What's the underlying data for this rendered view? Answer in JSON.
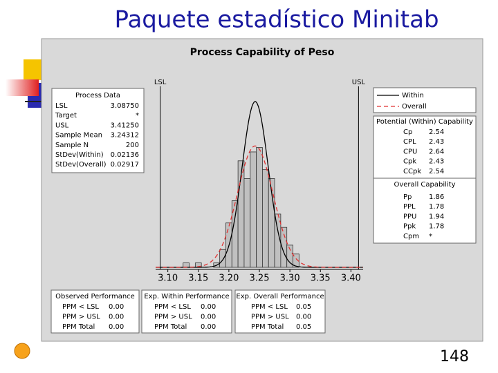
{
  "slide": {
    "title": "Paquete estadístico Minitab",
    "page_number": "148"
  },
  "chart_data": {
    "type": "histogram",
    "title": "Process Capability of Peso",
    "bins": [
      3.125,
      3.135,
      3.145,
      3.155,
      3.165,
      3.175,
      3.185,
      3.195,
      3.205,
      3.215,
      3.225,
      3.235,
      3.245,
      3.255,
      3.265,
      3.275,
      3.285,
      3.295,
      3.305,
      3.315
    ],
    "counts": [
      1,
      0,
      1,
      0,
      0,
      1,
      4,
      10,
      15,
      24,
      20,
      26,
      27,
      22,
      20,
      12,
      9,
      5,
      3
    ],
    "color": "#c0c0c0",
    "xlim": [
      3.08,
      3.42
    ],
    "xticks": [
      {
        "value": 3.1,
        "label": "3.10"
      },
      {
        "value": 3.15,
        "label": "3.15"
      },
      {
        "value": 3.2,
        "label": "3.20"
      },
      {
        "value": 3.25,
        "label": "3.25"
      },
      {
        "value": 3.3,
        "label": "3.30"
      },
      {
        "value": 3.35,
        "label": "3.35"
      },
      {
        "value": 3.4,
        "label": "3.40"
      }
    ],
    "ylim": [
      0,
      40
    ],
    "spec_labels": {
      "lsl": "LSL",
      "usl": "USL"
    },
    "series": [
      {
        "name": "Within",
        "color": "#000000",
        "dashed": false
      },
      {
        "name": "Overall",
        "color": "#e03030",
        "dashed": true
      }
    ],
    "process_data": {
      "title": "Process Data",
      "rows": [
        {
          "name": "LSL",
          "value": 3.0875,
          "label": "3.08750"
        },
        {
          "name": "Target",
          "label": "*"
        },
        {
          "name": "USL",
          "value": 3.4125,
          "label": "3.41250"
        },
        {
          "name": "Sample Mean",
          "value": 3.24312
        },
        {
          "name": "Sample N",
          "value": 200
        },
        {
          "name": "StDev(Within)",
          "value": 0.02136
        },
        {
          "name": "StDev(Overall)",
          "value": 0.02917
        }
      ]
    },
    "potential_capability": {
      "title": "Potential (Within) Capability",
      "rows": [
        {
          "name": "Cp",
          "value": 2.54
        },
        {
          "name": "CPL",
          "value": 2.43
        },
        {
          "name": "CPU",
          "value": 2.64
        },
        {
          "name": "Cpk",
          "value": 2.43
        },
        {
          "name": "CCpk",
          "value": 2.54
        }
      ]
    },
    "overall_capability": {
      "title": "Overall Capability",
      "rows": [
        {
          "name": "Pp",
          "value": 1.86
        },
        {
          "name": "PPL",
          "value": 1.78
        },
        {
          "name": "PPU",
          "value": 1.94
        },
        {
          "name": "Ppk",
          "value": 1.78
        },
        {
          "name": "Cpm",
          "label": "*"
        }
      ]
    },
    "observed_performance": {
      "title": "Observed Performance",
      "rows": [
        {
          "name": "PPM < LSL",
          "value": 0,
          "label": "0.00"
        },
        {
          "name": "PPM > USL",
          "value": 0,
          "label": "0.00"
        },
        {
          "name": "PPM Total",
          "value": 0,
          "label": "0.00"
        }
      ]
    },
    "exp_within_performance": {
      "title": "Exp. Within Performance",
      "rows": [
        {
          "name": "PPM < LSL",
          "value": 0,
          "label": "0.00"
        },
        {
          "name": "PPM > USL",
          "value": 0,
          "label": "0.00"
        },
        {
          "name": "PPM Total",
          "value": 0,
          "label": "0.00"
        }
      ]
    },
    "exp_overall_performance": {
      "title": "Exp. Overall Performance",
      "rows": [
        {
          "name": "PPM < LSL",
          "value": 0.05
        },
        {
          "name": "PPM > USL",
          "value": 0,
          "label": "0.00"
        },
        {
          "name": "PPM Total",
          "value": 0.05
        }
      ]
    }
  }
}
